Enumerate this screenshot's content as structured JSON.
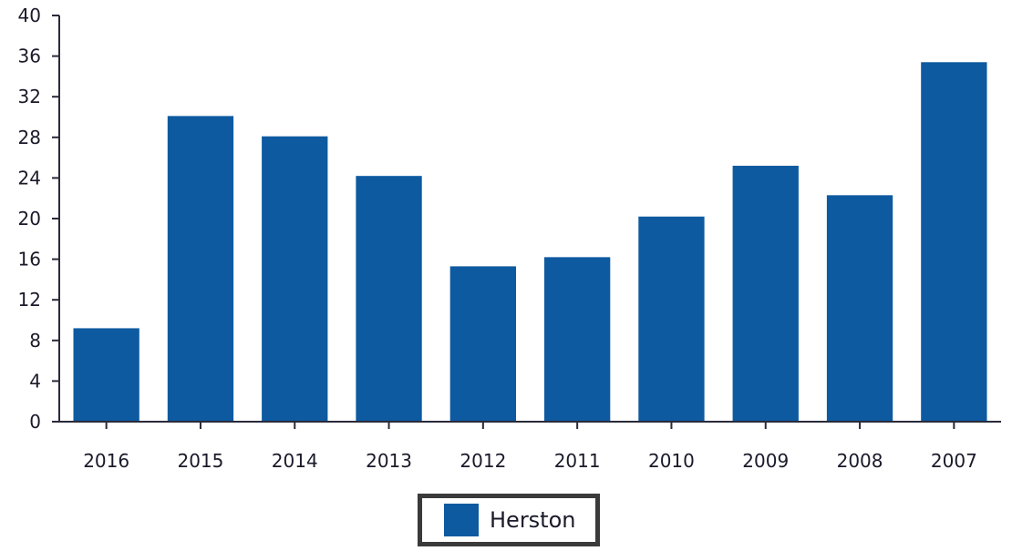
{
  "chart_data": {
    "type": "bar",
    "categories": [
      "2016",
      "2015",
      "2014",
      "2013",
      "2012",
      "2011",
      "2010",
      "2009",
      "2008",
      "2007"
    ],
    "series": [
      {
        "name": "Herston",
        "values": [
          9.2,
          30.1,
          28.1,
          24.2,
          15.3,
          16.2,
          20.2,
          25.2,
          22.3,
          35.4
        ]
      }
    ],
    "ylim": [
      0,
      40
    ],
    "yticks": [
      0,
      4,
      8,
      12,
      16,
      20,
      24,
      28,
      32,
      36,
      40
    ],
    "grid": false,
    "legend_position": "bottom-center",
    "bar_color": "#0d5aa0",
    "axis_color": "#2a2a3a"
  }
}
